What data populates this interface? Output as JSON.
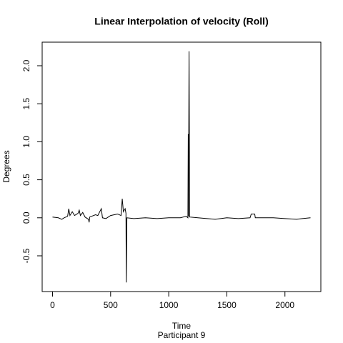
{
  "chart_data": {
    "type": "line",
    "title": "Linear Interpolation of velocity (Roll)",
    "x_label": "Time",
    "subtitle": "Participant 9",
    "y_label": "Degrees",
    "x": [
      0,
      50,
      80,
      100,
      130,
      140,
      150,
      170,
      190,
      220,
      230,
      240,
      260,
      280,
      310,
      315,
      320,
      370,
      390,
      420,
      430,
      460,
      500,
      560,
      590,
      600,
      610,
      625,
      632,
      635,
      640,
      700,
      800,
      900,
      1000,
      1100,
      1150,
      1165,
      1168,
      1170,
      1175,
      1180,
      1250,
      1400,
      1500,
      1600,
      1700,
      1710,
      1740,
      1745,
      1900,
      2000,
      2100,
      2150,
      2220
    ],
    "series": [
      {
        "name": "velocity",
        "color": "#000000",
        "values": [
          0.01,
          0.0,
          -0.02,
          0.0,
          0.02,
          0.12,
          0.03,
          0.08,
          0.03,
          0.06,
          0.1,
          0.03,
          0.07,
          0.01,
          -0.02,
          -0.06,
          0.01,
          0.04,
          0.03,
          0.12,
          0.0,
          -0.01,
          0.03,
          0.05,
          0.03,
          0.25,
          0.08,
          0.12,
          0.06,
          -0.85,
          0.0,
          -0.01,
          0.0,
          -0.01,
          0.0,
          0.0,
          0.02,
          0.0,
          1.1,
          0.02,
          2.19,
          0.01,
          0.0,
          -0.02,
          0.0,
          -0.01,
          0.0,
          0.05,
          0.05,
          0.0,
          0.0,
          -0.01,
          -0.02,
          -0.01,
          0.0
        ]
      }
    ],
    "xlim": [
      -89,
      2309
    ],
    "ylim": [
      -0.97,
      2.31
    ],
    "xticks": [
      0,
      500,
      1000,
      1500,
      2000
    ],
    "yticks": [
      -0.5,
      {
        "value": 0,
        "label": "0.0"
      },
      0.5,
      {
        "value": 1,
        "label": "1.0"
      },
      1.5,
      {
        "value": 2,
        "label": "2.0"
      }
    ]
  }
}
